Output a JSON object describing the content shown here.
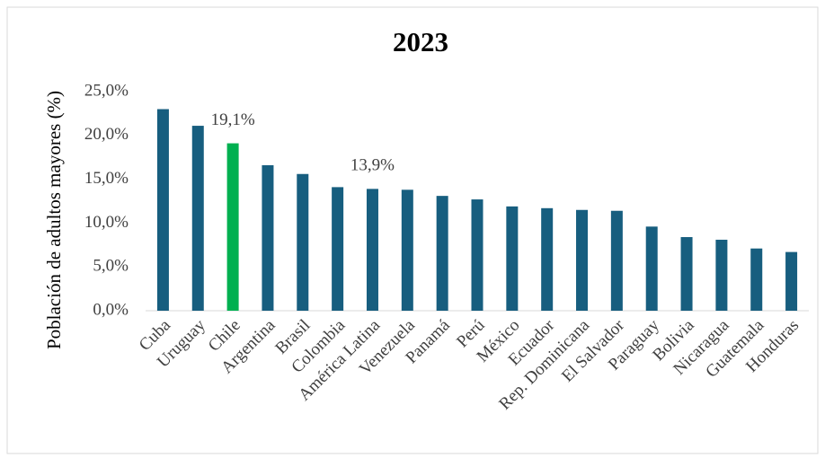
{
  "chart_data": {
    "type": "bar",
    "title": "2023",
    "y_label": "Población de adultos mayores (%)",
    "categories": [
      "Cuba",
      "Uruguay",
      "Chile",
      "Argentina",
      "Brasil",
      "Colombia",
      "América Latina",
      "Venezuela",
      "Panamá",
      "Perú",
      "México",
      "Ecuador",
      "Rep. Dominicana",
      "El Salvador",
      "Paraguay",
      "Bolivia",
      "Nicaragua",
      "Guatemala",
      "Honduras"
    ],
    "values": [
      23.0,
      21.1,
      19.1,
      16.6,
      15.6,
      14.1,
      13.9,
      13.8,
      13.1,
      12.7,
      11.9,
      11.7,
      11.5,
      11.4,
      9.6,
      8.4,
      8.1,
      7.1,
      6.7
    ],
    "value_labels": [
      null,
      null,
      "19,1%",
      null,
      null,
      null,
      "13,9%",
      null,
      null,
      null,
      null,
      null,
      null,
      null,
      null,
      null,
      null,
      null,
      null
    ],
    "colors": [
      "#175e7f",
      "#175e7f",
      "#00b050",
      "#175e7f",
      "#175e7f",
      "#175e7f",
      "#175e7f",
      "#175e7f",
      "#175e7f",
      "#175e7f",
      "#175e7f",
      "#175e7f",
      "#175e7f",
      "#175e7f",
      "#175e7f",
      "#175e7f",
      "#175e7f",
      "#175e7f",
      "#175e7f"
    ],
    "ylim": [
      0,
      25
    ],
    "yticks": [
      {
        "value": 0,
        "label": "0,0%"
      },
      {
        "value": 5,
        "label": "5,0%"
      },
      {
        "value": 10,
        "label": "10,0%"
      },
      {
        "value": 15,
        "label": "15,0%"
      },
      {
        "value": 20,
        "label": "20,0%"
      },
      {
        "value": 25,
        "label": "25,0%"
      }
    ],
    "grid": false
  }
}
